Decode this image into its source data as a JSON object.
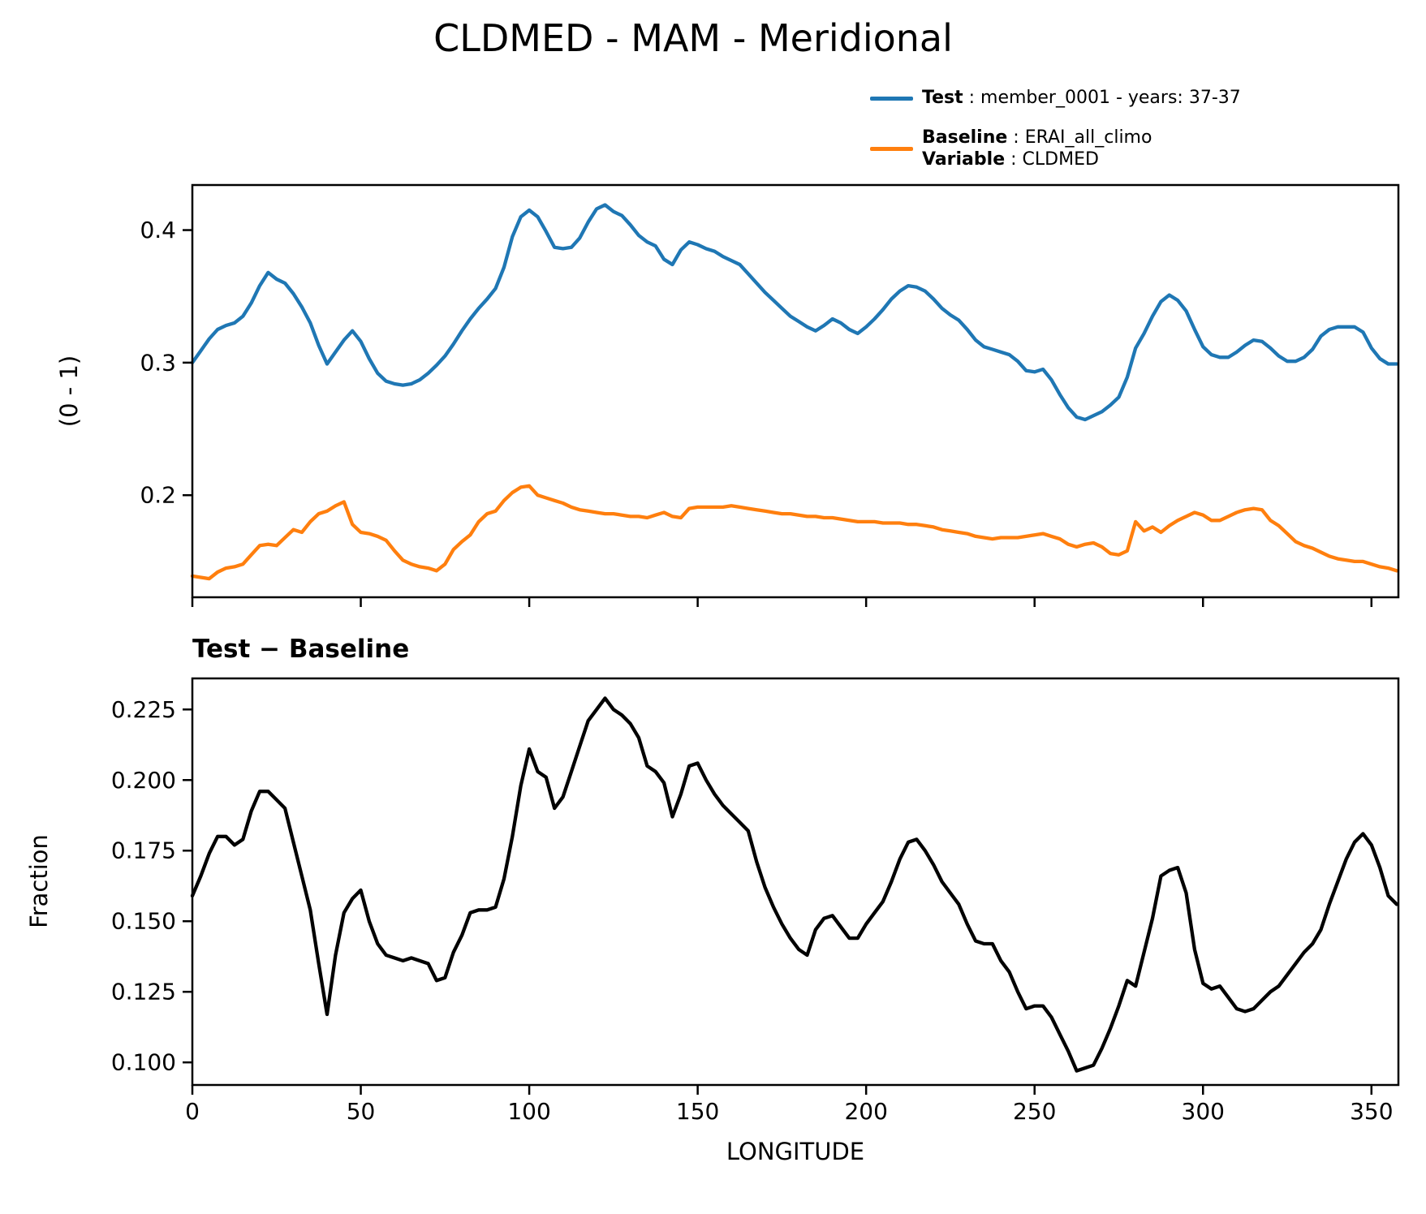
{
  "title": "CLDMED - MAM - Meridional",
  "legend": {
    "entries": [
      {
        "color": "#1f77b4",
        "label_bold": "Test",
        "label_rest": " : member_0001 - years: 37-37"
      },
      {
        "color": "#ff7f0e",
        "label_bold": "Baseline",
        "label_rest": " : ERAI_all_climo",
        "label2_bold": "Variable",
        "label2_rest": " : CLDMED"
      }
    ]
  },
  "chart_data": [
    {
      "type": "line",
      "title": "",
      "xlabel": "",
      "ylabel": "(0 - 1)",
      "xlim": [
        0,
        358
      ],
      "ylim": [
        0.123,
        0.434
      ],
      "grid": false,
      "legend_position": "upper right, above axes",
      "xticks": [
        0,
        50,
        100,
        150,
        200,
        250,
        300,
        350
      ],
      "xtick_labels": [],
      "yticks": [
        0.2,
        0.3,
        0.4
      ],
      "ytick_labels": [
        "0.2",
        "0.3",
        "0.4"
      ],
      "x": [
        0,
        2.5,
        5,
        7.5,
        10,
        12.5,
        15,
        17.5,
        20,
        22.5,
        25,
        27.5,
        30,
        32.5,
        35,
        37.5,
        40,
        42.5,
        45,
        47.5,
        50,
        52.5,
        55,
        57.5,
        60,
        62.5,
        65,
        67.5,
        70,
        72.5,
        75,
        77.5,
        80,
        82.5,
        85,
        87.5,
        90,
        92.5,
        95,
        97.5,
        100,
        102.5,
        105,
        107.5,
        110,
        112.5,
        115,
        117.5,
        120,
        122.5,
        125,
        127.5,
        130,
        132.5,
        135,
        137.5,
        140,
        142.5,
        145,
        147.5,
        150,
        152.5,
        155,
        157.5,
        160,
        162.5,
        165,
        167.5,
        170,
        172.5,
        175,
        177.5,
        180,
        182.5,
        185,
        187.5,
        190,
        192.5,
        195,
        197.5,
        200,
        202.5,
        205,
        207.5,
        210,
        212.5,
        215,
        217.5,
        220,
        222.5,
        225,
        227.5,
        230,
        232.5,
        235,
        237.5,
        240,
        242.5,
        245,
        247.5,
        250,
        252.5,
        255,
        257.5,
        260,
        262.5,
        265,
        267.5,
        270,
        272.5,
        275,
        277.5,
        280,
        282.5,
        285,
        287.5,
        290,
        292.5,
        295,
        297.5,
        300,
        302.5,
        305,
        307.5,
        310,
        312.5,
        315,
        317.5,
        320,
        322.5,
        325,
        327.5,
        330,
        332.5,
        335,
        337.5,
        340,
        342.5,
        345,
        347.5,
        350,
        352.5,
        355,
        357.5
      ],
      "series": [
        {
          "name": "Test : member_0001 - years: 37-37",
          "color": "#1f77b4",
          "values": [
            0.3,
            0.309,
            0.318,
            0.325,
            0.328,
            0.33,
            0.335,
            0.345,
            0.358,
            0.368,
            0.363,
            0.36,
            0.352,
            0.342,
            0.33,
            0.313,
            0.299,
            0.308,
            0.317,
            0.324,
            0.316,
            0.303,
            0.292,
            0.286,
            0.284,
            0.283,
            0.284,
            0.287,
            0.292,
            0.298,
            0.305,
            0.314,
            0.324,
            0.333,
            0.341,
            0.348,
            0.356,
            0.372,
            0.395,
            0.41,
            0.415,
            0.41,
            0.399,
            0.387,
            0.386,
            0.387,
            0.394,
            0.406,
            0.416,
            0.419,
            0.414,
            0.411,
            0.404,
            0.396,
            0.391,
            0.388,
            0.378,
            0.374,
            0.385,
            0.391,
            0.389,
            0.386,
            0.384,
            0.38,
            0.377,
            0.374,
            0.367,
            0.36,
            0.353,
            0.347,
            0.341,
            0.335,
            0.331,
            0.327,
            0.324,
            0.328,
            0.333,
            0.33,
            0.325,
            0.322,
            0.327,
            0.333,
            0.34,
            0.348,
            0.354,
            0.358,
            0.357,
            0.354,
            0.348,
            0.341,
            0.336,
            0.332,
            0.325,
            0.317,
            0.312,
            0.31,
            0.308,
            0.306,
            0.301,
            0.294,
            0.293,
            0.295,
            0.287,
            0.276,
            0.266,
            0.259,
            0.257,
            0.26,
            0.263,
            0.268,
            0.274,
            0.289,
            0.311,
            0.322,
            0.335,
            0.346,
            0.351,
            0.347,
            0.339,
            0.325,
            0.312,
            0.306,
            0.304,
            0.304,
            0.308,
            0.313,
            0.317,
            0.316,
            0.311,
            0.305,
            0.301,
            0.301,
            0.304,
            0.31,
            0.32,
            0.325,
            0.327,
            0.327,
            0.327,
            0.323,
            0.311,
            0.303,
            0.299,
            0.299
          ]
        },
        {
          "name": "Baseline : ERAI_all_climo, Variable : CLDMED",
          "color": "#ff7f0e",
          "values": [
            0.139,
            0.138,
            0.137,
            0.142,
            0.145,
            0.146,
            0.148,
            0.155,
            0.162,
            0.163,
            0.162,
            0.168,
            0.174,
            0.172,
            0.18,
            0.186,
            0.188,
            0.192,
            0.195,
            0.178,
            0.172,
            0.171,
            0.169,
            0.166,
            0.158,
            0.151,
            0.148,
            0.146,
            0.145,
            0.143,
            0.148,
            0.159,
            0.165,
            0.17,
            0.18,
            0.186,
            0.188,
            0.196,
            0.202,
            0.206,
            0.207,
            0.2,
            0.198,
            0.196,
            0.194,
            0.191,
            0.189,
            0.188,
            0.187,
            0.186,
            0.186,
            0.185,
            0.184,
            0.184,
            0.183,
            0.185,
            0.187,
            0.184,
            0.183,
            0.19,
            0.191,
            0.191,
            0.191,
            0.191,
            0.192,
            0.191,
            0.19,
            0.189,
            0.188,
            0.187,
            0.186,
            0.186,
            0.185,
            0.184,
            0.184,
            0.183,
            0.183,
            0.182,
            0.181,
            0.18,
            0.18,
            0.18,
            0.179,
            0.179,
            0.179,
            0.178,
            0.178,
            0.177,
            0.176,
            0.174,
            0.173,
            0.172,
            0.171,
            0.169,
            0.168,
            0.167,
            0.168,
            0.168,
            0.168,
            0.169,
            0.17,
            0.171,
            0.169,
            0.167,
            0.163,
            0.161,
            0.163,
            0.164,
            0.161,
            0.156,
            0.155,
            0.158,
            0.18,
            0.173,
            0.176,
            0.172,
            0.177,
            0.181,
            0.184,
            0.187,
            0.185,
            0.181,
            0.181,
            0.184,
            0.187,
            0.189,
            0.19,
            0.189,
            0.181,
            0.177,
            0.171,
            0.165,
            0.162,
            0.16,
            0.157,
            0.154,
            0.152,
            0.151,
            0.15,
            0.15,
            0.148,
            0.146,
            0.145,
            0.143
          ]
        }
      ]
    },
    {
      "type": "line",
      "title": "Test − Baseline",
      "xlabel": "LONGITUDE",
      "ylabel": "Fraction",
      "xlim": [
        0,
        358
      ],
      "ylim": [
        0.092,
        0.236
      ],
      "grid": false,
      "xticks": [
        0,
        50,
        100,
        150,
        200,
        250,
        300,
        350
      ],
      "xtick_labels": [
        "0",
        "50",
        "100",
        "150",
        "200",
        "250",
        "300",
        "350"
      ],
      "yticks": [
        0.1,
        0.125,
        0.15,
        0.175,
        0.2,
        0.225
      ],
      "ytick_labels": [
        "0.100",
        "0.125",
        "0.150",
        "0.175",
        "0.200",
        "0.225"
      ],
      "x": [
        0,
        2.5,
        5,
        7.5,
        10,
        12.5,
        15,
        17.5,
        20,
        22.5,
        25,
        27.5,
        30,
        32.5,
        35,
        37.5,
        40,
        42.5,
        45,
        47.5,
        50,
        52.5,
        55,
        57.5,
        60,
        62.5,
        65,
        67.5,
        70,
        72.5,
        75,
        77.5,
        80,
        82.5,
        85,
        87.5,
        90,
        92.5,
        95,
        97.5,
        100,
        102.5,
        105,
        107.5,
        110,
        112.5,
        115,
        117.5,
        120,
        122.5,
        125,
        127.5,
        130,
        132.5,
        135,
        137.5,
        140,
        142.5,
        145,
        147.5,
        150,
        152.5,
        155,
        157.5,
        160,
        162.5,
        165,
        167.5,
        170,
        172.5,
        175,
        177.5,
        180,
        182.5,
        185,
        187.5,
        190,
        192.5,
        195,
        197.5,
        200,
        202.5,
        205,
        207.5,
        210,
        212.5,
        215,
        217.5,
        220,
        222.5,
        225,
        227.5,
        230,
        232.5,
        235,
        237.5,
        240,
        242.5,
        245,
        247.5,
        250,
        252.5,
        255,
        257.5,
        260,
        262.5,
        265,
        267.5,
        270,
        272.5,
        275,
        277.5,
        280,
        282.5,
        285,
        287.5,
        290,
        292.5,
        295,
        297.5,
        300,
        302.5,
        305,
        307.5,
        310,
        312.5,
        315,
        317.5,
        320,
        322.5,
        325,
        327.5,
        330,
        332.5,
        335,
        337.5,
        340,
        342.5,
        345,
        347.5,
        350,
        352.5,
        355,
        357.5
      ],
      "series": [
        {
          "name": "Test − Baseline",
          "color": "#000000",
          "values": [
            0.159,
            0.166,
            0.174,
            0.18,
            0.18,
            0.177,
            0.179,
            0.189,
            0.196,
            0.196,
            0.193,
            0.19,
            0.178,
            0.166,
            0.154,
            0.135,
            0.117,
            0.138,
            0.153,
            0.158,
            0.161,
            0.15,
            0.142,
            0.138,
            0.137,
            0.136,
            0.137,
            0.136,
            0.135,
            0.129,
            0.13,
            0.139,
            0.145,
            0.153,
            0.154,
            0.154,
            0.155,
            0.165,
            0.18,
            0.198,
            0.211,
            0.203,
            0.201,
            0.19,
            0.194,
            0.203,
            0.212,
            0.221,
            0.225,
            0.229,
            0.225,
            0.223,
            0.22,
            0.215,
            0.205,
            0.203,
            0.199,
            0.187,
            0.195,
            0.205,
            0.206,
            0.2,
            0.195,
            0.191,
            0.188,
            0.185,
            0.182,
            0.171,
            0.162,
            0.155,
            0.149,
            0.144,
            0.14,
            0.138,
            0.147,
            0.151,
            0.152,
            0.148,
            0.144,
            0.144,
            0.149,
            0.153,
            0.157,
            0.164,
            0.172,
            0.178,
            0.179,
            0.175,
            0.17,
            0.164,
            0.16,
            0.156,
            0.149,
            0.143,
            0.142,
            0.142,
            0.136,
            0.132,
            0.125,
            0.119,
            0.12,
            0.12,
            0.116,
            0.11,
            0.104,
            0.097,
            0.098,
            0.099,
            0.105,
            0.112,
            0.12,
            0.129,
            0.127,
            0.139,
            0.151,
            0.166,
            0.168,
            0.169,
            0.16,
            0.14,
            0.128,
            0.126,
            0.127,
            0.123,
            0.119,
            0.118,
            0.119,
            0.122,
            0.125,
            0.127,
            0.131,
            0.135,
            0.139,
            0.142,
            0.147,
            0.156,
            0.164,
            0.172,
            0.178,
            0.181,
            0.177,
            0.169,
            0.159,
            0.156
          ]
        }
      ]
    }
  ]
}
